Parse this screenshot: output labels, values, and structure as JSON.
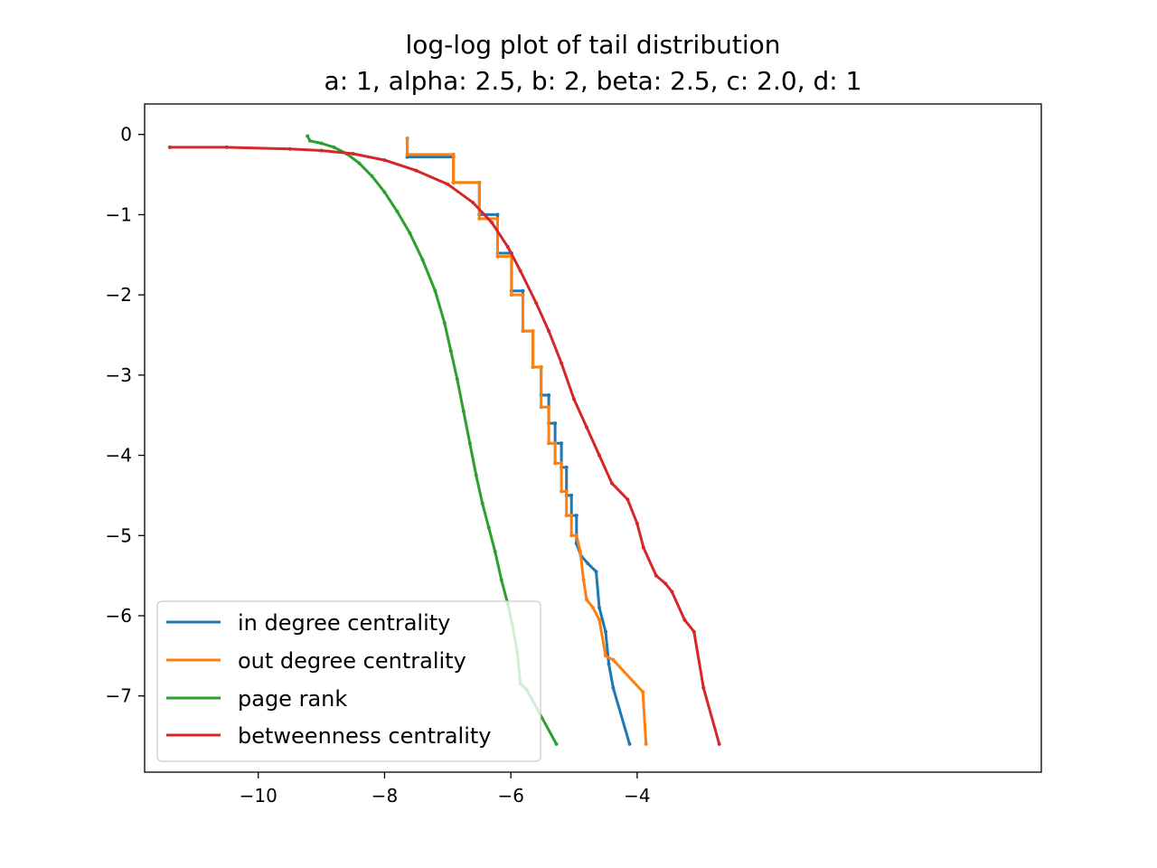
{
  "chart_data": {
    "type": "line",
    "title": "log-log plot of tail distribution",
    "subtitle": "a: 1, alpha: 2.5, b: 2, beta: 2.5, c: 2.0, d: 1",
    "xlabel": "",
    "ylabel": "",
    "xlim": [
      -11.8,
      2.4
    ],
    "ylim": [
      -7.95,
      0.38
    ],
    "xticks": [
      -10,
      -8,
      -6,
      -4
    ],
    "xtick_labels": [
      "−10",
      "−8",
      "−6",
      "−4"
    ],
    "yticks": [
      0,
      -1,
      -2,
      -3,
      -4,
      -5,
      -6,
      -7
    ],
    "ytick_labels": [
      "0",
      "−1",
      "−2",
      "−3",
      "−4",
      "−5",
      "−6",
      "−7"
    ],
    "grid": false,
    "legend_position": "lower-left",
    "series": [
      {
        "name": "in degree centrality",
        "color": "#1f77b4",
        "x": [
          -7.64,
          -7.64,
          -6.91,
          -6.91,
          -6.5,
          -6.5,
          -6.21,
          -6.21,
          -5.99,
          -5.99,
          -5.81,
          -5.81,
          -5.65,
          -5.65,
          -5.52,
          -5.52,
          -5.4,
          -5.4,
          -5.3,
          -5.3,
          -5.2,
          -5.2,
          -5.12,
          -5.12,
          -5.04,
          -5.04,
          -4.96,
          -4.96,
          -4.89,
          -4.78,
          -4.65,
          -4.6,
          -4.5,
          -4.45,
          -4.38,
          -4.12
        ],
        "y": [
          -0.05,
          -0.28,
          -0.28,
          -0.6,
          -0.6,
          -1.0,
          -1.0,
          -1.48,
          -1.48,
          -1.95,
          -1.95,
          -2.45,
          -2.45,
          -2.9,
          -2.9,
          -3.25,
          -3.25,
          -3.6,
          -3.6,
          -3.85,
          -3.85,
          -4.15,
          -4.15,
          -4.5,
          -4.5,
          -4.75,
          -4.75,
          -5.1,
          -5.25,
          -5.35,
          -5.45,
          -5.9,
          -6.2,
          -6.6,
          -6.9,
          -7.6
        ]
      },
      {
        "name": "out degree centrality",
        "color": "#ff7f0e",
        "x": [
          -7.64,
          -7.64,
          -6.91,
          -6.91,
          -6.5,
          -6.5,
          -6.21,
          -6.21,
          -5.99,
          -5.99,
          -5.81,
          -5.81,
          -5.65,
          -5.65,
          -5.52,
          -5.52,
          -5.4,
          -5.4,
          -5.3,
          -5.3,
          -5.2,
          -5.2,
          -5.12,
          -5.12,
          -5.04,
          -5.04,
          -4.96,
          -4.9,
          -4.85,
          -4.8,
          -4.7,
          -4.6,
          -4.5,
          -4.38,
          -3.91,
          -3.86
        ],
        "y": [
          -0.05,
          -0.25,
          -0.25,
          -0.6,
          -0.6,
          -1.05,
          -1.05,
          -1.52,
          -1.52,
          -2.0,
          -2.0,
          -2.45,
          -2.45,
          -2.9,
          -2.9,
          -3.4,
          -3.4,
          -3.85,
          -3.85,
          -4.1,
          -4.1,
          -4.45,
          -4.45,
          -4.75,
          -4.75,
          -5.0,
          -5.0,
          -5.2,
          -5.55,
          -5.8,
          -5.9,
          -6.05,
          -6.5,
          -6.55,
          -6.95,
          -7.6
        ]
      },
      {
        "name": "page rank",
        "color": "#2ca02c",
        "x": [
          -9.22,
          -9.18,
          -9.0,
          -8.8,
          -8.6,
          -8.4,
          -8.2,
          -8.0,
          -7.8,
          -7.6,
          -7.4,
          -7.2,
          -7.05,
          -6.95,
          -6.85,
          -6.75,
          -6.65,
          -6.55,
          -6.45,
          -6.35,
          -6.25,
          -6.15,
          -6.05,
          -5.98,
          -5.9,
          -5.85,
          -5.75,
          -5.28
        ],
        "y": [
          -0.02,
          -0.08,
          -0.11,
          -0.16,
          -0.24,
          -0.36,
          -0.52,
          -0.72,
          -0.96,
          -1.23,
          -1.56,
          -1.95,
          -2.35,
          -2.7,
          -3.05,
          -3.45,
          -3.85,
          -4.25,
          -4.6,
          -4.9,
          -5.2,
          -5.55,
          -5.85,
          -6.1,
          -6.45,
          -6.85,
          -6.92,
          -7.6
        ]
      },
      {
        "name": "betweenness centrality",
        "color": "#d62728",
        "x": [
          -11.4,
          -10.5,
          -9.5,
          -9.0,
          -8.5,
          -8.0,
          -7.5,
          -7.0,
          -6.6,
          -6.3,
          -6.05,
          -5.85,
          -5.6,
          -5.4,
          -5.2,
          -5.0,
          -4.8,
          -4.6,
          -4.4,
          -4.15,
          -4.0,
          -3.9,
          -3.7,
          -3.55,
          -3.45,
          -3.25,
          -3.1,
          -2.95,
          -2.7
        ],
        "y": [
          -0.16,
          -0.16,
          -0.18,
          -0.2,
          -0.24,
          -0.32,
          -0.45,
          -0.62,
          -0.85,
          -1.1,
          -1.4,
          -1.7,
          -2.1,
          -2.45,
          -2.85,
          -3.3,
          -3.65,
          -4.0,
          -4.35,
          -4.55,
          -4.85,
          -5.15,
          -5.5,
          -5.6,
          -5.7,
          -6.05,
          -6.2,
          -6.9,
          -7.6
        ]
      }
    ]
  }
}
